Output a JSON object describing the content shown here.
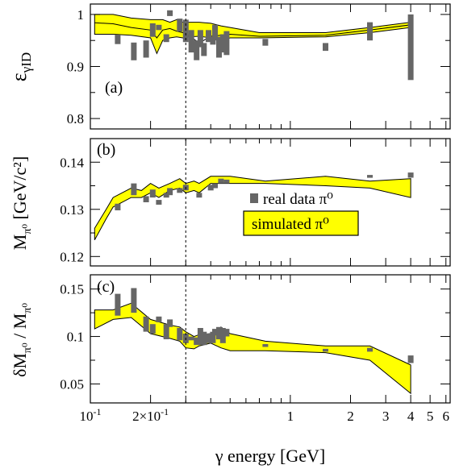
{
  "figure": {
    "xlabel": "γ energy [GeV]",
    "x_ticks": [
      {
        "value": 0.1,
        "label": "10⁻¹"
      },
      {
        "value": 0.2,
        "label": "2×10⁻¹"
      },
      {
        "value": 1,
        "label": "1"
      },
      {
        "value": 2,
        "label": "2"
      },
      {
        "value": 3,
        "label": "3"
      },
      {
        "value": 4,
        "label": "4"
      },
      {
        "value": 5,
        "label": "5"
      },
      {
        "value": 6,
        "label": "6"
      }
    ],
    "xlim": [
      0.1,
      6.3
    ],
    "x_scale": "log",
    "x_minor": [
      0.3,
      0.4,
      0.5,
      0.6,
      0.7,
      0.8,
      0.9
    ],
    "vline_x": 0.3,
    "legend": {
      "placement": "panel-b-lower-right",
      "data_label": "real data π⁰",
      "sim_label": "simulated π⁰",
      "data_color": "#666666",
      "sim_color": "#ffff00"
    }
  },
  "chart_data": [
    {
      "type": "area",
      "panel_tag": "(a)",
      "ylabel": "εγID",
      "ylim": [
        0.78,
        1.02
      ],
      "y_ticks": [
        0.8,
        0.9,
        1.0
      ],
      "y_tick_labels": [
        "0.8",
        "0.9",
        "1"
      ],
      "y_minor": [
        0.85,
        0.95
      ],
      "series": [
        {
          "kind": "band",
          "x": [
            0.105,
            0.13,
            0.16,
            0.2,
            0.215,
            0.23,
            0.25,
            0.27,
            0.29,
            0.31,
            0.35,
            0.4,
            0.45,
            0.5,
            0.7,
            1.5,
            2.5,
            4.0
          ],
          "upper": [
            1.0,
            1.0,
            0.993,
            0.99,
            0.99,
            0.99,
            0.985,
            0.99,
            0.985,
            0.985,
            0.985,
            0.983,
            0.978,
            0.975,
            0.965,
            0.965,
            0.975,
            0.985
          ],
          "lower": [
            0.962,
            0.962,
            0.96,
            0.955,
            0.925,
            0.95,
            0.955,
            0.957,
            0.955,
            0.957,
            0.958,
            0.955,
            0.95,
            0.955,
            0.955,
            0.957,
            0.965,
            0.975
          ]
        },
        {
          "kind": "line",
          "x": [
            0.105,
            0.13,
            0.16,
            0.2,
            0.215,
            0.23,
            0.25,
            0.27,
            0.29,
            0.31,
            0.35,
            0.4,
            0.45,
            0.5,
            0.7,
            1.5,
            2.5,
            4.0
          ],
          "y": [
            0.984,
            0.982,
            0.975,
            0.97,
            0.955,
            0.97,
            0.973,
            0.968,
            0.965,
            0.96,
            0.945,
            0.958,
            0.96,
            0.962,
            0.958,
            0.96,
            0.97,
            0.98
          ]
        },
        {
          "kind": "bars",
          "x": [
            0.137,
            0.165,
            0.19,
            0.205,
            0.22,
            0.24,
            0.25,
            0.28,
            0.3,
            0.32,
            0.34,
            0.355,
            0.37,
            0.39,
            0.41,
            0.42,
            0.44,
            0.46,
            0.48,
            0.75,
            1.5,
            2.5,
            4.0
          ],
          "lo": [
            0.943,
            0.912,
            0.917,
            0.957,
            0.97,
            0.947,
            0.997,
            0.967,
            0.947,
            0.927,
            0.912,
            0.937,
            0.92,
            0.947,
            0.942,
            0.95,
            0.917,
            0.927,
            0.922,
            0.94,
            0.93,
            0.95,
            0.874
          ],
          "hi": [
            0.961,
            0.946,
            0.95,
            0.983,
            0.98,
            0.962,
            1.008,
            0.992,
            0.99,
            0.97,
            0.95,
            0.97,
            0.945,
            0.97,
            0.957,
            0.98,
            0.957,
            0.962,
            0.968,
            0.953,
            0.945,
            0.985,
            1.0
          ]
        }
      ]
    },
    {
      "type": "area",
      "panel_tag": "(b)",
      "ylabel": "Mπ⁰ [GeV/c²]",
      "ylim": [
        0.118,
        0.145
      ],
      "y_ticks": [
        0.12,
        0.13,
        0.14
      ],
      "y_tick_labels": [
        "0.12",
        "0.13",
        "0.14"
      ],
      "y_minor": [
        0.125,
        0.135
      ],
      "series": [
        {
          "kind": "band",
          "x": [
            0.105,
            0.12,
            0.13,
            0.16,
            0.18,
            0.2,
            0.22,
            0.25,
            0.28,
            0.3,
            0.33,
            0.35,
            0.4,
            0.45,
            0.5,
            0.75,
            1.5,
            2.5,
            4.0
          ],
          "upper": [
            0.126,
            0.13,
            0.1325,
            0.1345,
            0.134,
            0.1355,
            0.1345,
            0.1355,
            0.1365,
            0.1355,
            0.136,
            0.1355,
            0.137,
            0.137,
            0.137,
            0.136,
            0.137,
            0.136,
            0.1365
          ],
          "lower": [
            0.1235,
            0.128,
            0.1305,
            0.1325,
            0.1325,
            0.1335,
            0.1325,
            0.134,
            0.1345,
            0.1335,
            0.134,
            0.1335,
            0.1355,
            0.1355,
            0.1355,
            0.1355,
            0.135,
            0.1345,
            0.1325
          ]
        },
        {
          "kind": "bars",
          "x": [
            0.137,
            0.165,
            0.19,
            0.205,
            0.22,
            0.24,
            0.25,
            0.28,
            0.3,
            0.35,
            0.4,
            0.42,
            0.45,
            0.48,
            2.5,
            4.0
          ],
          "lo": [
            0.1298,
            0.133,
            0.1315,
            0.1325,
            0.131,
            0.1325,
            0.133,
            0.1335,
            0.134,
            0.1325,
            0.134,
            0.1345,
            0.1355,
            0.1355,
            0.1367,
            0.1367
          ],
          "hi": [
            0.1312,
            0.1355,
            0.1328,
            0.1342,
            0.132,
            0.1335,
            0.1345,
            0.1345,
            0.1352,
            0.1335,
            0.1352,
            0.1355,
            0.1365,
            0.1363,
            0.1373,
            0.1378
          ]
        }
      ]
    },
    {
      "type": "area",
      "panel_tag": "(c)",
      "ylabel": "δMπ⁰ / Mπ⁰",
      "ylim": [
        0.03,
        0.165
      ],
      "y_ticks": [
        0.05,
        0.1,
        0.15
      ],
      "y_tick_labels": [
        "0.05",
        "0.1",
        "0.15"
      ],
      "y_minor": [
        0.075,
        0.125
      ],
      "series": [
        {
          "kind": "band",
          "x": [
            0.105,
            0.13,
            0.16,
            0.2,
            0.25,
            0.28,
            0.3,
            0.33,
            0.35,
            0.4,
            0.45,
            0.5,
            0.75,
            1.5,
            2.5,
            4.0
          ],
          "upper": [
            0.128,
            0.128,
            0.135,
            0.118,
            0.112,
            0.11,
            0.105,
            0.1,
            0.102,
            0.103,
            0.11,
            0.103,
            0.095,
            0.09,
            0.09,
            0.07
          ],
          "lower": [
            0.108,
            0.118,
            0.12,
            0.103,
            0.098,
            0.095,
            0.088,
            0.087,
            0.09,
            0.093,
            0.088,
            0.085,
            0.085,
            0.083,
            0.075,
            0.04
          ]
        },
        {
          "kind": "bars",
          "x": [
            0.137,
            0.165,
            0.19,
            0.205,
            0.22,
            0.24,
            0.25,
            0.28,
            0.3,
            0.32,
            0.34,
            0.355,
            0.37,
            0.39,
            0.41,
            0.42,
            0.44,
            0.46,
            0.48,
            0.75,
            1.5,
            2.5,
            4.0
          ],
          "lo": [
            0.122,
            0.125,
            0.105,
            0.103,
            0.115,
            0.097,
            0.11,
            0.096,
            0.093,
            0.096,
            0.091,
            0.091,
            0.091,
            0.093,
            0.093,
            0.101,
            0.097,
            0.093,
            0.1,
            0.089,
            0.084,
            0.084,
            0.072
          ],
          "hi": [
            0.145,
            0.151,
            0.121,
            0.113,
            0.121,
            0.113,
            0.118,
            0.109,
            0.103,
            0.1,
            0.099,
            0.109,
            0.105,
            0.103,
            0.105,
            0.108,
            0.11,
            0.109,
            0.108,
            0.092,
            0.087,
            0.088,
            0.08
          ]
        }
      ]
    }
  ]
}
